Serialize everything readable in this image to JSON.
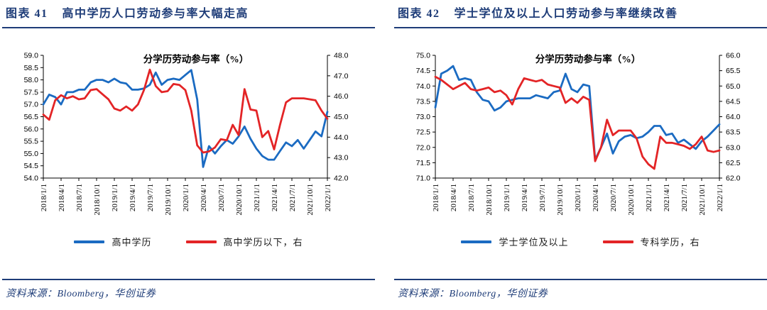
{
  "page": {
    "background": "#ffffff",
    "accent_navy": "#1e3c78",
    "line_blue": "#1b6bc2",
    "line_red": "#e32426"
  },
  "figures": [
    {
      "label": "图表 41",
      "title": "高中学历人口劳动参与率大幅走高",
      "source": "资料来源：Bloomberg，华创证券"
    },
    {
      "label": "图表 42",
      "title": "学士学位及以上人口劳动参与率继续改善",
      "source": "资料来源：Bloomberg，华创证券"
    }
  ],
  "chart_data": [
    {
      "type": "line",
      "title": "分学历劳动参与率（%）",
      "x_frequency": "monthly 2018/1 - 2022/1",
      "x_tick_labels": [
        "2018/1/1",
        "2018/4/1",
        "2018/7/1",
        "2018/10/1",
        "2019/1/1",
        "2019/4/1",
        "2019/7/1",
        "2019/10/1",
        "2020/1/1",
        "2020/4/1",
        "2020/7/1",
        "2020/10/1",
        "2021/1/1",
        "2021/4/1",
        "2021/7/1",
        "2021/10/1",
        "2022/1/1"
      ],
      "left_axis": {
        "min": 54.0,
        "max": 59.0,
        "step": 0.5
      },
      "right_axis": {
        "min": 42.0,
        "max": 48.0,
        "step": 1.0
      },
      "grid": false,
      "legend_position": "bottom",
      "series": [
        {
          "name": "高中学历",
          "axis": "left",
          "color": "#1b6bc2",
          "values": [
            57.0,
            57.4,
            57.3,
            57.0,
            57.5,
            57.5,
            57.6,
            57.6,
            57.9,
            58.0,
            58.0,
            57.9,
            58.05,
            57.9,
            57.85,
            57.6,
            57.6,
            57.65,
            57.8,
            58.3,
            57.8,
            58.0,
            58.05,
            58.0,
            58.2,
            58.4,
            57.2,
            54.45,
            55.3,
            55.0,
            55.3,
            55.55,
            55.4,
            55.7,
            56.1,
            55.6,
            55.2,
            54.9,
            54.75,
            54.75,
            55.1,
            55.45,
            55.3,
            55.55,
            55.2,
            55.55,
            55.9,
            55.7,
            56.7
          ]
        },
        {
          "name": "高中学历以下，右",
          "axis": "right",
          "color": "#e32426",
          "values": [
            45.1,
            44.85,
            45.8,
            46.05,
            45.9,
            46.0,
            45.85,
            45.9,
            46.3,
            46.35,
            46.1,
            45.85,
            45.4,
            45.3,
            45.5,
            45.3,
            45.6,
            46.3,
            47.3,
            46.5,
            46.2,
            46.25,
            46.6,
            46.55,
            46.3,
            45.3,
            43.6,
            43.25,
            43.3,
            43.5,
            43.9,
            43.85,
            44.6,
            44.1,
            46.35,
            45.35,
            45.3,
            44.0,
            44.3,
            43.4,
            44.6,
            45.7,
            45.9,
            45.9,
            45.9,
            45.85,
            45.8,
            45.3,
            44.9
          ]
        }
      ]
    },
    {
      "type": "line",
      "title": "分学历劳动参与率（%）",
      "x_frequency": "monthly 2018/1 - 2022/1",
      "x_tick_labels": [
        "2018/1/1",
        "2018/4/1",
        "2018/7/1",
        "2018/10/1",
        "2019/1/1",
        "2019/4/1",
        "2019/7/1",
        "2019/10/1",
        "2020/1/1",
        "2020/4/1",
        "2020/7/1",
        "2020/10/1",
        "2021/1/1",
        "2021/4/1",
        "2021/7/1",
        "2021/10/1",
        "2022/1/1"
      ],
      "left_axis": {
        "min": 71.0,
        "max": 75.0,
        "step": 0.5
      },
      "right_axis": {
        "min": 62.0,
        "max": 66.0,
        "step": 0.5
      },
      "grid": false,
      "legend_position": "bottom",
      "series": [
        {
          "name": "学士学位及以上",
          "axis": "left",
          "color": "#1b6bc2",
          "values": [
            73.3,
            74.4,
            74.5,
            74.65,
            74.2,
            74.25,
            74.2,
            73.8,
            73.55,
            73.5,
            73.2,
            73.3,
            73.5,
            73.55,
            73.6,
            73.6,
            73.6,
            73.7,
            73.65,
            73.6,
            73.8,
            73.85,
            74.4,
            73.9,
            73.8,
            74.05,
            74.0,
            71.6,
            72.0,
            72.45,
            71.8,
            72.2,
            72.35,
            72.4,
            72.3,
            72.35,
            72.5,
            72.7,
            72.7,
            72.4,
            72.45,
            72.15,
            72.25,
            72.1,
            71.95,
            72.2,
            72.35,
            72.55,
            72.75
          ]
        },
        {
          "name": "专科学历，右",
          "axis": "right",
          "color": "#e32426",
          "values": [
            65.3,
            65.2,
            65.05,
            64.9,
            65.0,
            65.1,
            64.9,
            64.85,
            64.9,
            64.95,
            64.8,
            64.85,
            64.7,
            64.4,
            64.9,
            65.25,
            65.2,
            65.15,
            65.2,
            65.05,
            65.0,
            64.95,
            64.45,
            64.6,
            64.45,
            64.65,
            64.55,
            62.55,
            63.0,
            63.9,
            63.4,
            63.55,
            63.55,
            63.55,
            63.3,
            62.7,
            62.45,
            62.3,
            63.35,
            63.15,
            63.15,
            63.1,
            63.05,
            62.95,
            63.1,
            63.35,
            62.9,
            62.85,
            62.9
          ]
        }
      ]
    }
  ]
}
